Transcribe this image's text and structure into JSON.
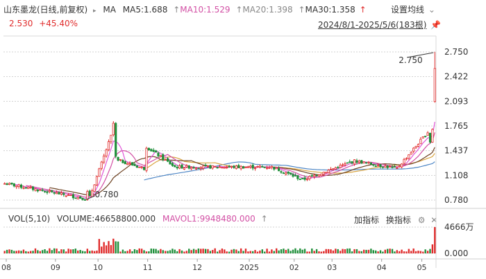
{
  "header": {
    "title": "山东墨龙(日线,前复权)",
    "ma_label": "MA",
    "ma5": "MA5:1.688",
    "ma10": "MA10:1.529",
    "ma20": "MA20:1.398",
    "ma30": "MA30:1.358",
    "settings_label": "设置均线",
    "price": "2.530",
    "change": "+45.40%",
    "date_range": "2024/8/1-2025/5/6(183根)"
  },
  "volume_header": {
    "vol_label": "VOL(5,10)",
    "volume": "VOLUME:46658800.000",
    "mavol": "MAVOL1:9948480.000",
    "indicator_add": "加指标",
    "indicator_switch": "换指标"
  },
  "colors": {
    "up": "#e02b2b",
    "down": "#1f8f3a",
    "ma5": "#e056d8",
    "ma10": "#d24fa4",
    "ma20": "#6b3f1f",
    "ma30": "#d9a441",
    "ma60": "#4f87c6",
    "grid": "#d0d0d0"
  },
  "chart_data": {
    "type": "candlestick",
    "price_axis": {
      "ticks": [
        2.75,
        2.422,
        2.093,
        1.765,
        1.437,
        1.108,
        0.78
      ],
      "tick_labels": [
        "2.750",
        "2.422",
        "2.093",
        "1.765",
        "1.437",
        "1.108",
        "0.780"
      ],
      "range": [
        0.7,
        2.85
      ]
    },
    "volume_axis": {
      "tick_labels": [
        "4666万",
        "0.000"
      ]
    },
    "x_axis": {
      "labels": [
        "08",
        "09",
        "10",
        "11",
        "12",
        "2025",
        "02",
        "03",
        "04",
        "05"
      ],
      "months": [
        "2024-08",
        "2024-09",
        "2024-10",
        "2024-11",
        "2024-12",
        "2025-01",
        "2025-02",
        "2025-03",
        "2025-04",
        "2025-05"
      ]
    },
    "annotations": {
      "high_label": "2.750",
      "low_label": "0.780",
      "high": 2.75,
      "low": 0.78
    },
    "key_points": [
      {
        "date": "2024-08-01",
        "close": 1.0
      },
      {
        "date": "2024-09-18",
        "close": 0.8
      },
      {
        "date": "2024-10-08",
        "close": 1.8
      },
      {
        "date": "2024-11-15",
        "close": 1.22
      },
      {
        "date": "2025-01-15",
        "close": 1.22
      },
      {
        "date": "2025-02-05",
        "close": 1.05
      },
      {
        "date": "2025-03-10",
        "close": 1.3
      },
      {
        "date": "2025-04-08",
        "close": 1.2
      },
      {
        "date": "2025-04-28",
        "close": 1.72
      },
      {
        "date": "2025-05-06",
        "close": 2.53
      }
    ],
    "ma_last": {
      "ma5": 1.688,
      "ma10": 1.529,
      "ma20": 1.398,
      "ma30": 1.358
    },
    "last_volume": 46658800,
    "last_mavol": 9948480
  }
}
